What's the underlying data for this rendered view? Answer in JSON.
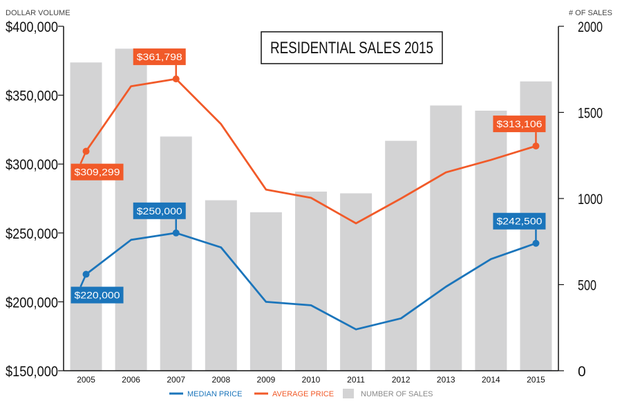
{
  "chart_data": {
    "type": "bar",
    "title": "RESIDENTIAL SALES 2015",
    "left_axis_title": "DOLLAR VOLUME",
    "right_axis_title": "# OF SALES",
    "categories": [
      "2005",
      "2006",
      "2007",
      "2008",
      "2009",
      "2010",
      "2011",
      "2012",
      "2013",
      "2014",
      "2015"
    ],
    "left_axis": {
      "ylim": [
        150000,
        400000
      ],
      "ticks": [
        "$150,000",
        "$200,000",
        "$250,000",
        "$300,000",
        "$350,000",
        "$400,000"
      ],
      "tick_values": [
        150000,
        200000,
        250000,
        300000,
        350000,
        400000
      ]
    },
    "right_axis": {
      "ylim": [
        0,
        2000
      ],
      "ticks": [
        "0",
        "500",
        "1000",
        "1500",
        "2000"
      ],
      "tick_values": [
        0,
        500,
        1000,
        1500,
        2000
      ]
    },
    "series": [
      {
        "name": "MEDIAN PRICE",
        "type": "line",
        "axis": "left",
        "color": "#1b75bb",
        "values": [
          220000,
          245000,
          250000,
          239500,
          200000,
          197500,
          180000,
          188000,
          211000,
          231000,
          242500
        ]
      },
      {
        "name": "AVERAGE PRICE",
        "type": "line",
        "axis": "left",
        "color": "#f15a29",
        "values": [
          309299,
          356500,
          361798,
          329000,
          281500,
          275500,
          257000,
          275000,
          294000,
          303000,
          313106
        ]
      },
      {
        "name": "NUMBER OF SALES",
        "type": "bar",
        "axis": "right",
        "color": "#d3d3d4",
        "values": [
          1790,
          1870,
          1360,
          990,
          920,
          1040,
          1030,
          1335,
          1540,
          1510,
          1680
        ]
      }
    ],
    "callouts": [
      {
        "series": 0,
        "index": 0,
        "label": "$220,000",
        "pos": "below-right"
      },
      {
        "series": 0,
        "index": 2,
        "label": "$250,000",
        "pos": "above-left"
      },
      {
        "series": 0,
        "index": 10,
        "label": "$242,500",
        "pos": "above-left"
      },
      {
        "series": 1,
        "index": 0,
        "label": "$309,299",
        "pos": "below-right"
      },
      {
        "series": 1,
        "index": 2,
        "label": "$361,798",
        "pos": "above-left"
      },
      {
        "series": 1,
        "index": 10,
        "label": "$313,106",
        "pos": "above-left"
      }
    ],
    "legend": {
      "position": "bottom"
    }
  }
}
